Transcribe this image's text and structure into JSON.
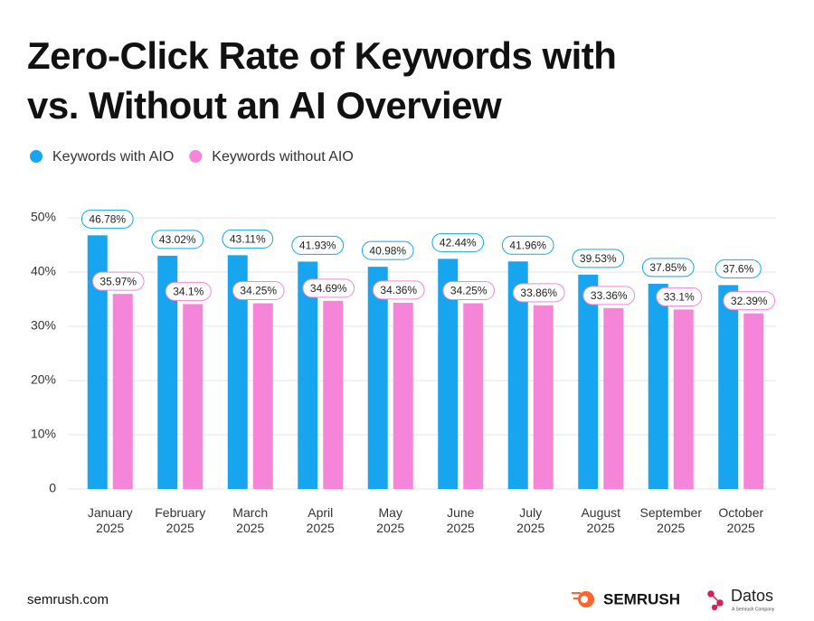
{
  "chart_data": {
    "type": "bar",
    "title": [
      "Zero-Click Rate of Keywords with",
      "vs. Without an AI Overview"
    ],
    "categories": [
      "January 2025",
      "February 2025",
      "March 2025",
      "April 2025",
      "May 2025",
      "June 2025",
      "July 2025",
      "August 2025",
      "September 2025",
      "October 2025"
    ],
    "series": [
      {
        "name": "Keywords with AIO",
        "color": "#18a5ef",
        "values": [
          46.78,
          43.02,
          43.11,
          41.93,
          40.98,
          42.44,
          41.96,
          39.53,
          37.85,
          37.6
        ],
        "value_labels": [
          "46.78%",
          "43.02%",
          "43.11%",
          "41.93%",
          "40.98%",
          "42.44%",
          "41.96%",
          "39.53%",
          "37.85%",
          "37.6%"
        ]
      },
      {
        "name": "Keywords without AIO",
        "color": "#f585d8",
        "values": [
          35.97,
          34.1,
          34.25,
          34.69,
          34.36,
          34.25,
          33.86,
          33.36,
          33.1,
          32.39
        ],
        "value_labels": [
          "35.97%",
          "34.1%",
          "34.25%",
          "34.69%",
          "34.36%",
          "34.25%",
          "33.86%",
          "33.36%",
          "33.1%",
          "32.39%"
        ]
      }
    ],
    "ylim": [
      0,
      50
    ],
    "yticks": [
      0,
      {
        "value": 10,
        "label": "10%"
      },
      {
        "value": 20,
        "label": "20%"
      },
      {
        "value": 30,
        "label": "30%"
      },
      {
        "value": 40,
        "label": "40%"
      },
      {
        "value": 50,
        "label": "50%"
      }
    ],
    "grid": true,
    "legend": "top-left",
    "source": "semrush.com",
    "logos": [
      "SEMRUSH",
      "Datos",
      "A Semrush Company"
    ]
  }
}
